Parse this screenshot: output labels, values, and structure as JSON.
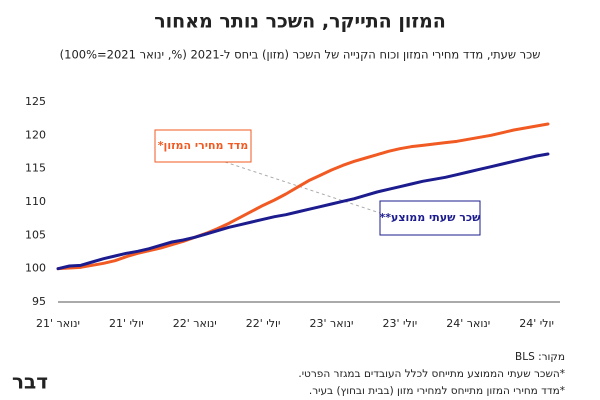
{
  "chart_data": {
    "type": "line",
    "title": "המזון התייקר, השכר נותר מאחור",
    "subtitle": "שכר שעתי, מדד מחירי המזון וכוח הקנייה של השכר (מזון) ביחס ל-2021 (%, ינואר 2021=100%)",
    "categories": [
      "ינואר '21",
      null,
      null,
      null,
      null,
      null,
      "יולי '21",
      null,
      null,
      null,
      null,
      null,
      "ינואר '22",
      null,
      null,
      null,
      null,
      null,
      "יולי '22",
      null,
      null,
      null,
      null,
      null,
      "ינואר '23",
      null,
      null,
      null,
      null,
      null,
      "יולי '23",
      null,
      null,
      null,
      null,
      null,
      "ינואר '24",
      null,
      null,
      null,
      null,
      null,
      "יולי '24",
      null
    ],
    "series": [
      {
        "name": "מדד מחירי המזון*",
        "color": "#f15a22",
        "values": [
          100,
          100.1,
          100.2,
          100.5,
          100.8,
          101.2,
          101.8,
          102.3,
          102.7,
          103.1,
          103.6,
          104.1,
          104.7,
          105.3,
          106.0,
          106.8,
          107.7,
          108.6,
          109.5,
          110.3,
          111.2,
          112.2,
          113.2,
          114.0,
          114.8,
          115.5,
          116.1,
          116.6,
          117.1,
          117.6,
          118.0,
          118.3,
          118.5,
          118.7,
          118.9,
          119.1,
          119.4,
          119.7,
          120.0,
          120.4,
          120.8,
          121.1,
          121.4,
          121.7
        ]
      },
      {
        "name": "שכר שעתי ממוצע**",
        "color": "#1c1c8f",
        "values": [
          100,
          100.4,
          100.5,
          101.0,
          101.5,
          101.9,
          102.3,
          102.6,
          103.0,
          103.5,
          104.0,
          104.3,
          104.7,
          105.2,
          105.7,
          106.2,
          106.6,
          107.0,
          107.4,
          107.8,
          108.1,
          108.5,
          108.9,
          109.3,
          109.7,
          110.1,
          110.5,
          111.0,
          111.5,
          111.9,
          112.3,
          112.7,
          113.1,
          113.4,
          113.7,
          114.1,
          114.5,
          114.9,
          115.3,
          115.7,
          116.1,
          116.5,
          116.9,
          117.2
        ]
      }
    ],
    "ylim": [
      95,
      125
    ],
    "yticks": [
      95,
      100,
      105,
      110,
      115,
      120,
      125
    ],
    "grid": false,
    "footnotes": [
      "מקור: BLS",
      "*השכר שעתי הממוצע מתייחס לכלל העובדים במגזר הפרטי.",
      "*מדד מחירי המזון מתייחס למחירי מזון (בבית ובחוץ) בעיר."
    ],
    "logo": "דבר"
  }
}
